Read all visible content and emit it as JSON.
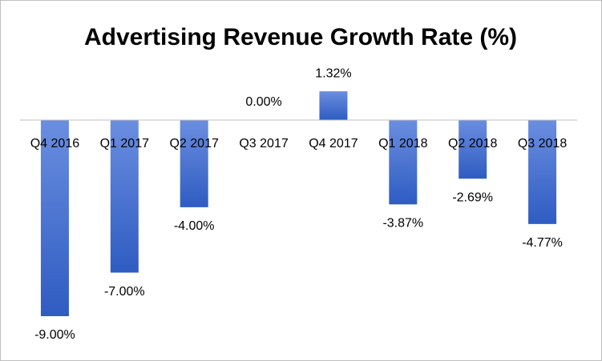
{
  "chart_data": {
    "type": "bar",
    "title": "Advertising Revenue Growth Rate (%)",
    "categories": [
      "Q4 2016",
      "Q1 2017",
      "Q2 2017",
      "Q3 2017",
      "Q4 2017",
      "Q1 2018",
      "Q2 2018",
      "Q3 2018"
    ],
    "values": [
      -9.0,
      -7.0,
      -4.0,
      0.0,
      1.32,
      -3.87,
      -2.69,
      -4.77
    ],
    "value_labels": [
      "-9.00%",
      "-7.00%",
      "-4.00%",
      "0.00%",
      "1.32%",
      "-3.87%",
      "-2.69%",
      "-4.77%"
    ],
    "color": "#4472c4"
  }
}
